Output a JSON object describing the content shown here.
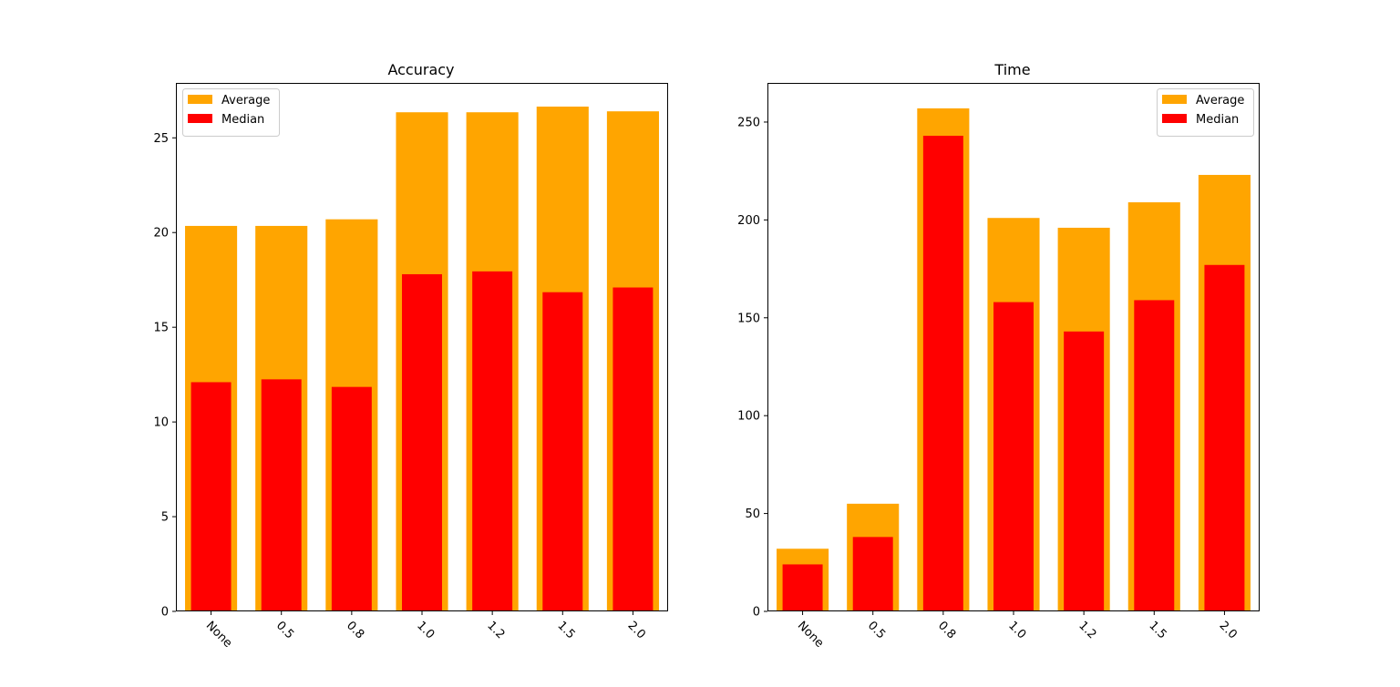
{
  "colors": {
    "average": "#ffa500",
    "median": "#ff0000",
    "axis": "#000000",
    "background": "#ffffff"
  },
  "chart_data": [
    {
      "type": "bar",
      "title": "Accuracy",
      "xlabel": "",
      "ylabel": "",
      "categories": [
        "None",
        "0.5",
        "0.8",
        "1.0",
        "1.2",
        "1.5",
        "2.0"
      ],
      "yticks": [
        0,
        5,
        10,
        15,
        20,
        25
      ],
      "ylim": [
        0,
        27.9
      ],
      "grid": false,
      "legend": "top-left",
      "series": [
        {
          "name": "Average",
          "color": "#ffa500",
          "values": [
            20.35,
            20.35,
            20.7,
            26.35,
            26.35,
            26.65,
            26.4
          ]
        },
        {
          "name": "Median",
          "color": "#ff0000",
          "values": [
            12.1,
            12.25,
            11.85,
            17.8,
            17.95,
            16.85,
            17.1
          ]
        }
      ]
    },
    {
      "type": "bar",
      "title": "Time",
      "xlabel": "",
      "ylabel": "",
      "categories": [
        "None",
        "0.5",
        "0.8",
        "1.0",
        "1.2",
        "1.5",
        "2.0"
      ],
      "yticks": [
        0,
        50,
        100,
        150,
        200,
        250
      ],
      "ylim": [
        0,
        270
      ],
      "grid": false,
      "legend": "top-right",
      "series": [
        {
          "name": "Average",
          "color": "#ffa500",
          "values": [
            32,
            55,
            257,
            201,
            196,
            209,
            223
          ]
        },
        {
          "name": "Median",
          "color": "#ff0000",
          "values": [
            24,
            38,
            243,
            158,
            143,
            159,
            177
          ]
        }
      ]
    }
  ]
}
